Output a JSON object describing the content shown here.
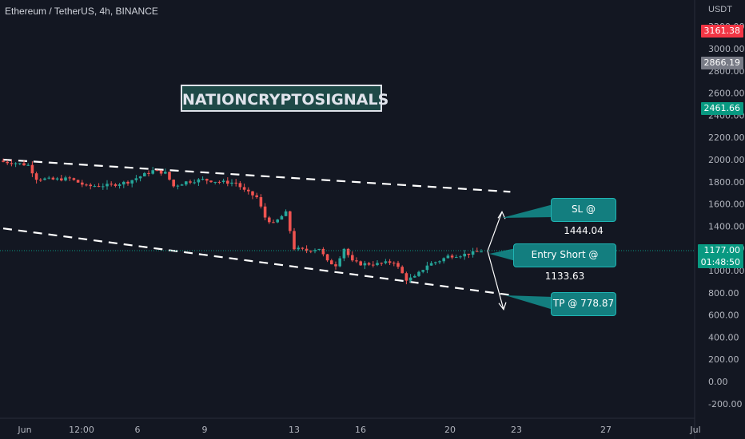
{
  "legend": {
    "symbol": "Ethereum / TetherUS, 4h, BINANCE"
  },
  "axis": {
    "currency": "USDT"
  },
  "brand": {
    "text": "NATIONCRYPTOSIGNALS"
  },
  "price_tags": {
    "red": {
      "value": "3161.38",
      "color": "#f23645"
    },
    "gray": {
      "value": "2866.19",
      "color": "#787b86"
    },
    "green": {
      "value": "2461.66",
      "color": "#089981"
    },
    "last": {
      "value": "1177.00",
      "countdown": "01:48:50",
      "color": "#089981"
    }
  },
  "callouts": {
    "sl": "SL @ 1444.04",
    "entry": "Entry Short @ 1133.63",
    "tp": "TP @ 778.87"
  },
  "colors": {
    "up": "#26a69a",
    "down": "#ef5350",
    "background": "#131722",
    "callout": "#137e7f"
  },
  "chart_data": {
    "type": "candlestick",
    "title": "Ethereum / TetherUS, 4h, BINANCE",
    "y_tick_labels": [
      "-200.00",
      "0.00",
      "200.00",
      "400.00",
      "600.00",
      "800.00",
      "1000.00",
      "1200.00",
      "1400.00",
      "1600.00",
      "1800.00",
      "2000.00",
      "2200.00",
      "2400.00",
      "2600.00",
      "2800.00",
      "3000.00",
      "3200.00"
    ],
    "y_ticks": [
      -200,
      0,
      200,
      400,
      600,
      800,
      1000,
      1200,
      1400,
      1600,
      1800,
      2000,
      2200,
      2400,
      2600,
      2800,
      3000,
      3200
    ],
    "ylim": [
      -300,
      3420
    ],
    "x_tick_labels": [
      {
        "label": "Jun",
        "x": "2022-06-01T00:00"
      },
      {
        "label": "12:00",
        "x": "2022-06-01T12:00"
      },
      {
        "label": "6",
        "x": "2022-06-02T00:00"
      },
      {
        "label": "9",
        "x": "2022-06-03T00:00"
      },
      {
        "label": "13",
        "x": "2022-06-04T00:00"
      },
      {
        "label": "16",
        "x": "2022-06-05T00:00"
      },
      {
        "label": "20",
        "x": "2022-06-06T00:00"
      },
      {
        "label": "23",
        "x": "2022-06-07T00:00"
      },
      {
        "label": "27",
        "x": "2022-06-08T00:00"
      },
      {
        "label": "Jul",
        "x": "2022-06-09T00:00"
      }
    ],
    "close_path": [
      [
        0,
        1980
      ],
      [
        3,
        1970
      ],
      [
        6,
        1950
      ],
      [
        8,
        1830
      ],
      [
        12,
        1820
      ],
      [
        16,
        1830
      ],
      [
        20,
        1760
      ],
      [
        26,
        1770
      ],
      [
        30,
        1800
      ],
      [
        33,
        1850
      ],
      [
        36,
        1900
      ],
      [
        39,
        1880
      ],
      [
        41,
        1760
      ],
      [
        44,
        1800
      ],
      [
        48,
        1820
      ],
      [
        52,
        1800
      ],
      [
        56,
        1790
      ],
      [
        58,
        1720
      ],
      [
        61,
        1660
      ],
      [
        63,
        1480
      ],
      [
        65,
        1420
      ],
      [
        67,
        1490
      ],
      [
        68,
        1520
      ],
      [
        70,
        1200
      ],
      [
        73,
        1180
      ],
      [
        76,
        1200
      ],
      [
        78,
        1080
      ],
      [
        80,
        1050
      ],
      [
        82,
        1200
      ],
      [
        84,
        1080
      ],
      [
        86,
        1060
      ],
      [
        90,
        1060
      ],
      [
        94,
        1080
      ],
      [
        97,
        920
      ],
      [
        99,
        940
      ],
      [
        102,
        1050
      ],
      [
        105,
        1090
      ],
      [
        107,
        1130
      ],
      [
        110,
        1140
      ],
      [
        113,
        1160
      ],
      [
        115,
        1177
      ]
    ],
    "trendlines": [
      {
        "points": [
          [
            0,
            2000
          ],
          [
            122,
            1710
          ]
        ],
        "style": "dashed"
      },
      {
        "points": [
          [
            0,
            1380
          ],
          [
            122,
            780
          ]
        ],
        "style": "dashed"
      }
    ],
    "projection": {
      "start_price": 1177,
      "sl": 1444.04,
      "entry": 1133.63,
      "tp": 778.87
    },
    "last_price": 1177.0
  }
}
